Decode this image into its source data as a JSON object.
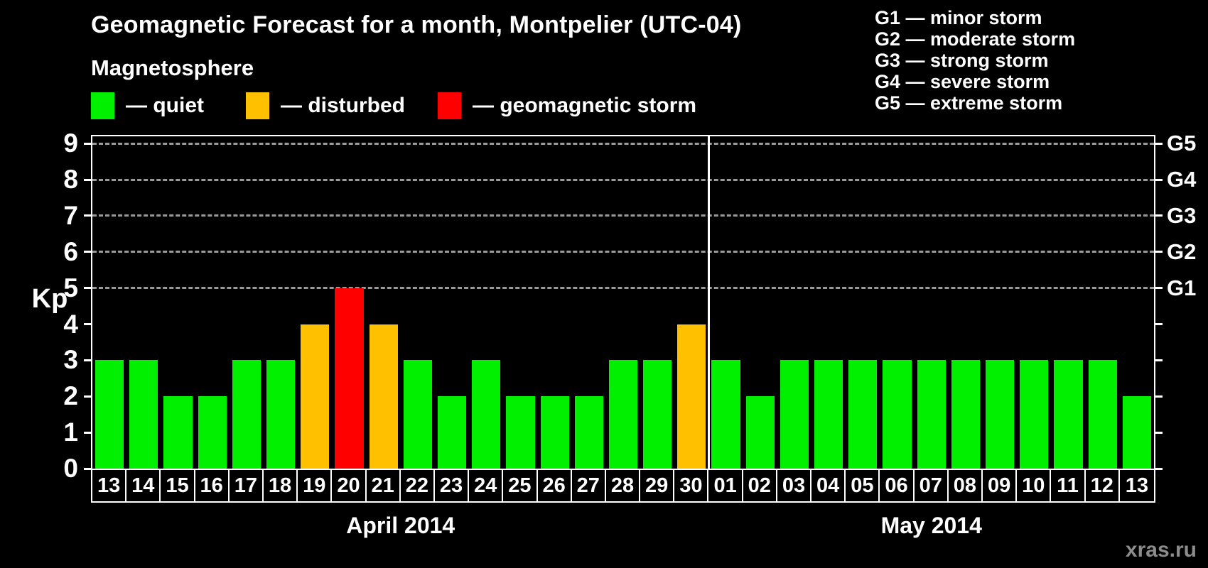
{
  "header": {
    "title": "Geomagnetic Forecast for a month, Montpelier (UTC-04)",
    "subtitle": "Magnetosphere",
    "legend": [
      {
        "key": "quiet",
        "label": "— quiet",
        "color": "#00f000"
      },
      {
        "key": "disturbed",
        "label": "— disturbed",
        "color": "#ffc000"
      },
      {
        "key": "storm",
        "label": "— geomagnetic storm",
        "color": "#ff0000"
      }
    ]
  },
  "g_legend": {
    "items": [
      "G1 — minor storm",
      "G2 — moderate storm",
      "G3 — strong storm",
      "G4 — severe storm",
      "G5 — extreme storm"
    ]
  },
  "chart_data": {
    "type": "bar",
    "title": "Geomagnetic Forecast for a month, Montpelier (UTC-04)",
    "ylabel": "Kp",
    "ylim": [
      0,
      9.2
    ],
    "yticks": [
      0,
      1,
      2,
      3,
      4,
      5,
      6,
      7,
      8,
      9
    ],
    "right_ticks": [
      {
        "value": 5,
        "label": "G1"
      },
      {
        "value": 6,
        "label": "G2"
      },
      {
        "value": 7,
        "label": "G3"
      },
      {
        "value": 8,
        "label": "G4"
      },
      {
        "value": 9,
        "label": "G5"
      }
    ],
    "gridlines": [
      5,
      6,
      7,
      8,
      9
    ],
    "grid": "dashed-horizontal-on-storm-levels",
    "legend_position": "top",
    "colors": {
      "quiet": "#00f000",
      "disturbed": "#ffc000",
      "storm": "#ff0000"
    },
    "months": [
      {
        "label": "April 2014",
        "days": [
          "13",
          "14",
          "15",
          "16",
          "17",
          "18",
          "19",
          "20",
          "21",
          "22",
          "23",
          "24",
          "25",
          "26",
          "27",
          "28",
          "29",
          "30"
        ],
        "values": [
          3,
          3,
          2,
          2,
          3,
          3,
          4,
          5,
          4,
          3,
          2,
          3,
          2,
          2,
          2,
          3,
          3,
          4
        ],
        "levels": [
          "quiet",
          "quiet",
          "quiet",
          "quiet",
          "quiet",
          "quiet",
          "disturbed",
          "storm",
          "disturbed",
          "quiet",
          "quiet",
          "quiet",
          "quiet",
          "quiet",
          "quiet",
          "quiet",
          "quiet",
          "disturbed"
        ]
      },
      {
        "label": "May 2014",
        "days": [
          "01",
          "02",
          "03",
          "04",
          "05",
          "06",
          "07",
          "08",
          "09",
          "10",
          "11",
          "12",
          "13"
        ],
        "values": [
          3,
          2,
          3,
          3,
          3,
          3,
          3,
          3,
          3,
          3,
          3,
          3,
          2
        ],
        "levels": [
          "quiet",
          "quiet",
          "quiet",
          "quiet",
          "quiet",
          "quiet",
          "quiet",
          "quiet",
          "quiet",
          "quiet",
          "quiet",
          "quiet",
          "quiet"
        ]
      }
    ]
  },
  "watermark": "xras.ru"
}
